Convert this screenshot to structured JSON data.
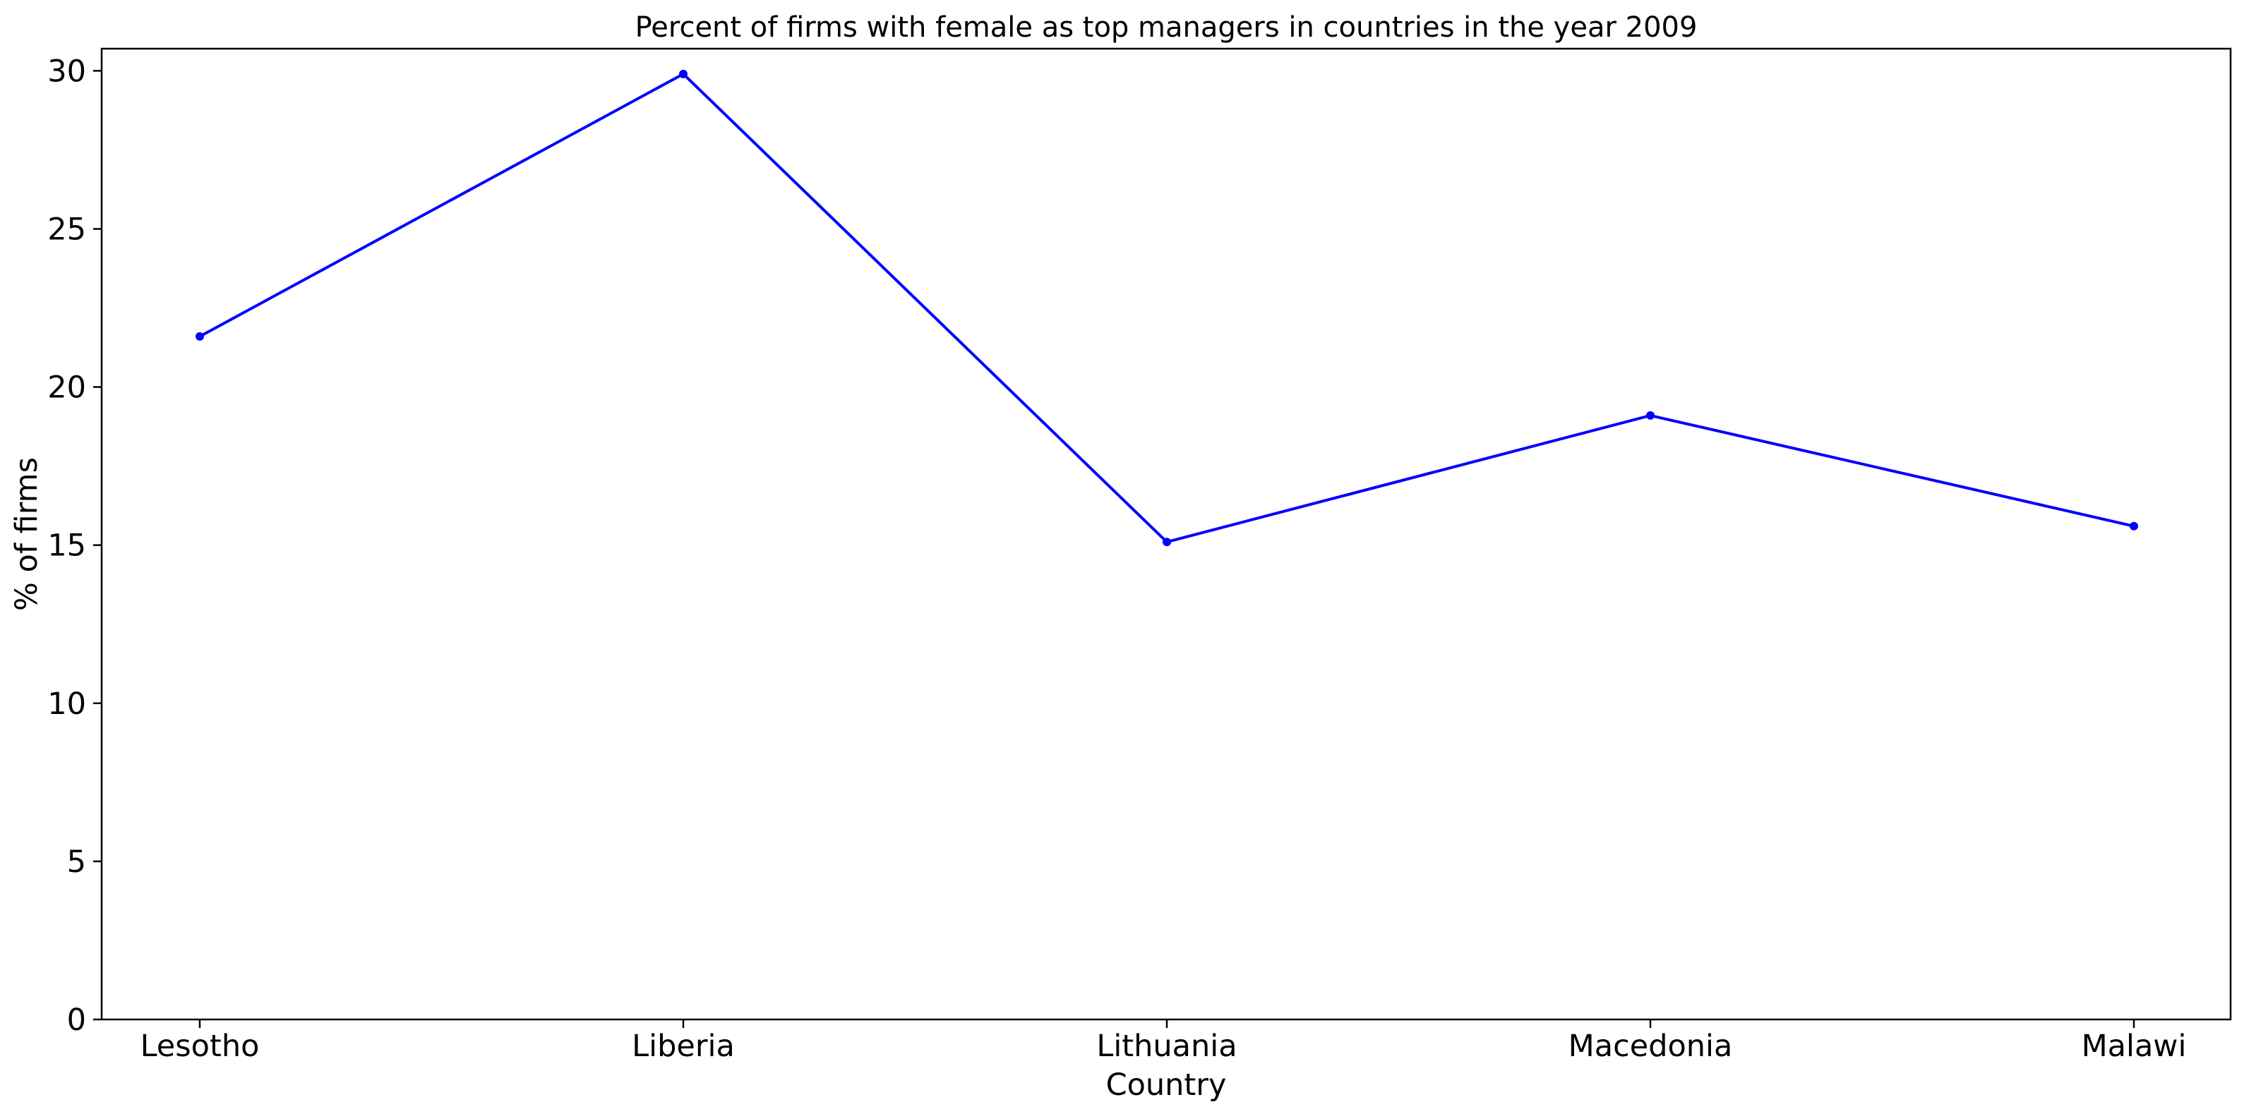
{
  "chart_data": {
    "type": "line",
    "title": "Percent of firms with female as top managers in countries in the year 2009",
    "xlabel": "Country",
    "ylabel": "% of firms",
    "categories": [
      "Lesotho",
      "Liberia",
      "Lithuania",
      "Macedonia",
      "Malawi"
    ],
    "series": [
      {
        "values": [
          21.6,
          29.9,
          15.1,
          19.1,
          15.6
        ],
        "color": "#0000ff",
        "marker": "circle"
      }
    ],
    "ylim": [
      0,
      30.7
    ],
    "yticks": [
      0,
      5,
      10,
      15,
      20,
      25,
      30
    ],
    "grid": false
  }
}
